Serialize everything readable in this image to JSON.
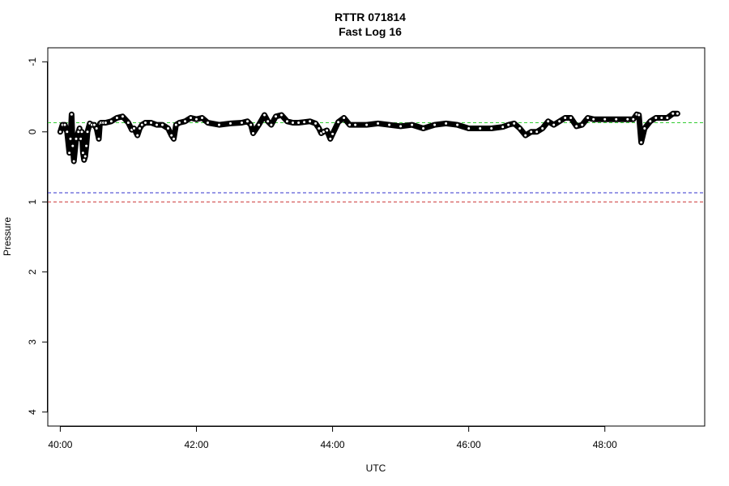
{
  "chart_data": {
    "type": "scatter",
    "title": "RTTR 071814",
    "subtitle": "Fast Log 16",
    "xlabel": "UTC",
    "ylabel": "Pressure",
    "xlim": [
      "39:49",
      "49:28"
    ],
    "ylim": [
      4.2,
      -1.2
    ],
    "y_reversed": true,
    "x_ticks": [
      "40:00",
      "42:00",
      "44:00",
      "46:00",
      "48:00"
    ],
    "y_ticks": [
      -1,
      0,
      1,
      2,
      3,
      4
    ],
    "grid": false,
    "reference_lines": [
      {
        "y": -0.13,
        "color": "#33cc33",
        "style": "dashed"
      },
      {
        "y": 0.87,
        "color": "#3333cc",
        "style": "dashed"
      },
      {
        "y": 1.0,
        "color": "#cc3333",
        "style": "dashed"
      }
    ],
    "series": [
      {
        "marker": "open-circle",
        "color": "#000000",
        "x": [
          "40:00",
          "40:02",
          "40:04",
          "40:06",
          "40:08",
          "40:09",
          "40:10",
          "40:11",
          "40:12",
          "40:14",
          "40:16",
          "40:17",
          "40:18",
          "40:19",
          "40:20",
          "40:21",
          "40:22",
          "40:23",
          "40:24",
          "40:26",
          "40:28",
          "40:30",
          "40:32",
          "40:34",
          "40:35",
          "40:36",
          "40:38",
          "40:40",
          "40:45",
          "40:50",
          "40:55",
          "41:00",
          "41:03",
          "41:05",
          "41:08",
          "41:10",
          "41:12",
          "41:15",
          "41:20",
          "41:25",
          "41:30",
          "41:35",
          "41:38",
          "41:40",
          "41:42",
          "41:45",
          "41:50",
          "41:55",
          "42:00",
          "42:05",
          "42:10",
          "42:20",
          "42:30",
          "42:40",
          "42:45",
          "42:48",
          "42:50",
          "42:55",
          "43:00",
          "43:03",
          "43:06",
          "43:10",
          "43:15",
          "43:20",
          "43:25",
          "43:30",
          "43:35",
          "43:40",
          "43:45",
          "43:48",
          "43:50",
          "43:52",
          "43:55",
          "43:58",
          "44:00",
          "44:05",
          "44:10",
          "44:15",
          "44:20",
          "44:30",
          "44:40",
          "44:50",
          "45:00",
          "45:10",
          "45:20",
          "45:30",
          "45:40",
          "45:50",
          "46:00",
          "46:10",
          "46:20",
          "46:30",
          "46:35",
          "46:40",
          "46:45",
          "46:50",
          "46:55",
          "47:00",
          "47:05",
          "47:10",
          "47:15",
          "47:20",
          "47:25",
          "47:30",
          "47:35",
          "47:40",
          "47:45",
          "47:50",
          "48:00",
          "48:10",
          "48:20",
          "48:25",
          "48:28",
          "48:30",
          "48:32",
          "48:35",
          "48:40",
          "48:45",
          "48:50",
          "48:55",
          "49:00",
          "49:04"
        ],
        "y": [
          0.0,
          -0.1,
          -0.1,
          0.0,
          0.3,
          0.1,
          -0.25,
          0.2,
          0.42,
          0.1,
          0.0,
          -0.05,
          0.1,
          0.0,
          0.3,
          0.4,
          0.35,
          0.2,
          0.0,
          -0.12,
          -0.1,
          -0.1,
          -0.05,
          0.1,
          -0.12,
          -0.13,
          -0.13,
          -0.13,
          -0.15,
          -0.2,
          -0.22,
          -0.13,
          -0.03,
          -0.05,
          0.05,
          -0.05,
          -0.1,
          -0.13,
          -0.13,
          -0.1,
          -0.1,
          -0.05,
          0.05,
          0.1,
          -0.1,
          -0.13,
          -0.15,
          -0.2,
          -0.18,
          -0.2,
          -0.13,
          -0.1,
          -0.12,
          -0.13,
          -0.15,
          -0.1,
          0.02,
          -0.1,
          -0.24,
          -0.15,
          -0.1,
          -0.22,
          -0.24,
          -0.15,
          -0.13,
          -0.13,
          -0.14,
          -0.15,
          -0.12,
          -0.05,
          0.02,
          0.0,
          -0.02,
          0.1,
          0.03,
          -0.14,
          -0.2,
          -0.1,
          -0.1,
          -0.1,
          -0.12,
          -0.1,
          -0.08,
          -0.1,
          -0.05,
          -0.1,
          -0.12,
          -0.1,
          -0.05,
          -0.05,
          -0.05,
          -0.07,
          -0.1,
          -0.12,
          -0.05,
          0.05,
          0.0,
          0.0,
          -0.05,
          -0.15,
          -0.1,
          -0.15,
          -0.2,
          -0.2,
          -0.08,
          -0.1,
          -0.2,
          -0.18,
          -0.18,
          -0.18,
          -0.18,
          -0.18,
          -0.25,
          -0.24,
          0.15,
          -0.05,
          -0.15,
          -0.2,
          -0.2,
          -0.2,
          -0.26,
          -0.26
        ]
      }
    ]
  }
}
